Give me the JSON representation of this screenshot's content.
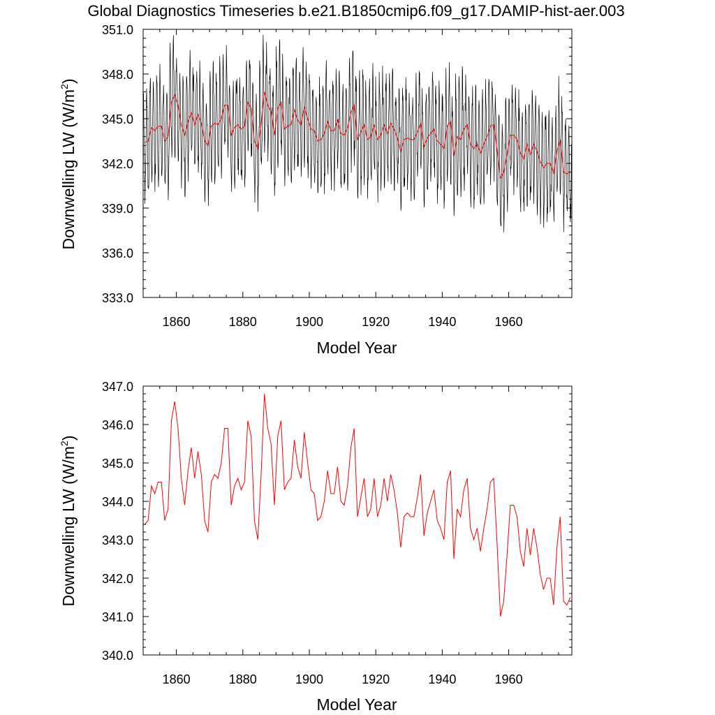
{
  "title": "Global Diagnostics Timeseries b.e21.B1850cmip6.f09_g17.DAMIP-hist-aer.003",
  "colors": {
    "monthly": "#000000",
    "annual": "#ff0000",
    "axis": "#000000"
  },
  "chart_data": [
    {
      "type": "line",
      "xlabel": "Model Year",
      "ylabel_main": "Downwelling LW (W/m",
      "ylabel_sup": "2",
      "ylabel_tail": ")",
      "xlim": [
        1850,
        1979
      ],
      "ylim": [
        333.0,
        351.0
      ],
      "yticks": [
        "333.0",
        "336.0",
        "339.0",
        "342.0",
        "345.0",
        "348.0",
        "351.0"
      ],
      "ytick_values": [
        333,
        336,
        339,
        342,
        345,
        348,
        351
      ],
      "xticks": [
        "1860",
        "1880",
        "1900",
        "1920",
        "1940",
        "1960"
      ],
      "xtick_values": [
        1860,
        1880,
        1900,
        1920,
        1940,
        1960
      ],
      "series": [
        {
          "kind": "monthly",
          "amplitude": 3.0
        },
        {
          "kind": "annual"
        }
      ]
    },
    {
      "type": "line",
      "xlabel": "Model Year",
      "ylabel_main": "Downwelling LW (W/m",
      "ylabel_sup": "2",
      "ylabel_tail": ")",
      "xlim": [
        1850,
        1979
      ],
      "ylim": [
        340.0,
        347.0
      ],
      "yticks": [
        "340.0",
        "341.0",
        "342.0",
        "343.0",
        "344.0",
        "345.0",
        "346.0",
        "347.0"
      ],
      "ytick_values": [
        340,
        341,
        342,
        343,
        344,
        345,
        346,
        347
      ],
      "xticks": [
        "1860",
        "1880",
        "1900",
        "1920",
        "1940",
        "1960"
      ],
      "xtick_values": [
        1860,
        1880,
        1900,
        1920,
        1940,
        1960
      ],
      "series": [
        {
          "kind": "annual"
        }
      ]
    }
  ],
  "annual_series": {
    "x": [
      1850.5,
      1851.5,
      1852.5,
      1853.5,
      1854.5,
      1855.5,
      1856.5,
      1857.5,
      1858.5,
      1859.5,
      1860.5,
      1861.5,
      1862.5,
      1863.5,
      1864.5,
      1865.5,
      1866.5,
      1867.5,
      1868.5,
      1869.5,
      1870.5,
      1871.5,
      1872.5,
      1873.5,
      1874.5,
      1875.5,
      1876.5,
      1877.5,
      1878.5,
      1879.5,
      1880.5,
      1881.5,
      1882.5,
      1883.5,
      1884.5,
      1885.5,
      1886.5,
      1887.5,
      1888.5,
      1889.5,
      1890.5,
      1891.5,
      1892.5,
      1893.5,
      1894.5,
      1895.5,
      1896.5,
      1897.5,
      1898.5,
      1899.5,
      1900.5,
      1901.5,
      1902.5,
      1903.5,
      1904.5,
      1905.5,
      1906.5,
      1907.5,
      1908.5,
      1909.5,
      1910.5,
      1911.5,
      1912.5,
      1913.5,
      1914.5,
      1915.5,
      1916.5,
      1917.5,
      1918.5,
      1919.5,
      1920.5,
      1921.5,
      1922.5,
      1923.5,
      1924.5,
      1925.5,
      1926.5,
      1927.5,
      1928.5,
      1929.5,
      1930.5,
      1931.5,
      1932.5,
      1933.5,
      1934.5,
      1935.5,
      1936.5,
      1937.5,
      1938.5,
      1939.5,
      1940.5,
      1941.5,
      1942.5,
      1943.5,
      1944.5,
      1945.5,
      1946.5,
      1947.5,
      1948.5,
      1949.5,
      1950.5,
      1951.5,
      1952.5,
      1953.5,
      1954.5,
      1955.5,
      1956.5,
      1957.5,
      1958.5,
      1959.5,
      1960.5,
      1961.5,
      1962.5,
      1963.5,
      1964.5,
      1965.5,
      1966.5,
      1967.5,
      1968.5,
      1969.5,
      1970.5,
      1971.5,
      1972.5,
      1973.5,
      1974.5,
      1975.5,
      1976.5,
      1977.5,
      1978.5
    ],
    "y": [
      343.4,
      343.5,
      344.4,
      344.2,
      344.5,
      344.5,
      343.5,
      343.8,
      346.1,
      346.6,
      345.9,
      344.6,
      343.9,
      344.8,
      345.4,
      344.6,
      345.3,
      344.7,
      343.5,
      343.2,
      344.5,
      344.7,
      344.6,
      345.0,
      345.9,
      345.9,
      343.9,
      344.4,
      344.6,
      344.3,
      344.5,
      346.1,
      345.7,
      343.5,
      343.0,
      344.7,
      346.8,
      345.9,
      345.5,
      343.9,
      345.7,
      346.1,
      344.3,
      344.5,
      344.6,
      345.6,
      344.9,
      344.6,
      345.8,
      345.0,
      344.3,
      344.2,
      343.5,
      343.6,
      344.0,
      344.8,
      344.2,
      344.2,
      344.9,
      344.0,
      343.9,
      344.4,
      345.4,
      345.9,
      343.6,
      344.1,
      344.6,
      343.6,
      343.8,
      344.6,
      343.6,
      343.9,
      344.6,
      344.0,
      344.7,
      344.3,
      343.7,
      342.8,
      343.6,
      343.7,
      343.6,
      343.6,
      344.1,
      344.7,
      343.1,
      343.7,
      344.0,
      344.3,
      343.5,
      343.3,
      343.0,
      344.5,
      344.8,
      342.5,
      343.8,
      343.6,
      344.3,
      344.6,
      343.3,
      343.0,
      343.3,
      342.7,
      343.3,
      343.8,
      344.5,
      344.6,
      342.9,
      341.0,
      341.4,
      342.6,
      343.9,
      343.9,
      343.6,
      342.7,
      342.3,
      343.3,
      342.6,
      343.3,
      342.8,
      342.1,
      341.7,
      342.0,
      342.0,
      341.3,
      342.8,
      343.6,
      341.4,
      341.3,
      341.5
    ]
  }
}
